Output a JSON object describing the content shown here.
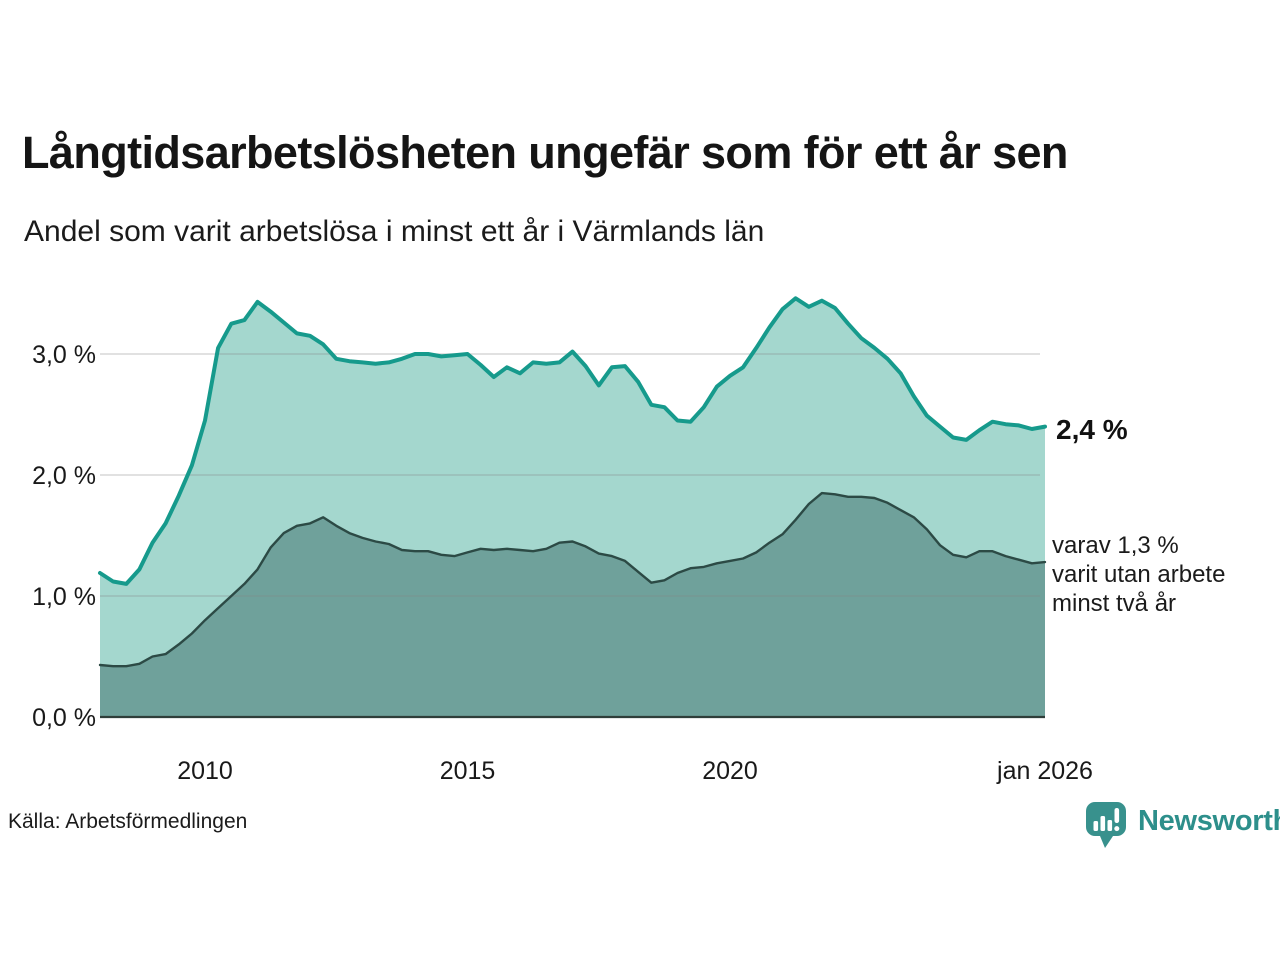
{
  "header": {
    "title": "Långtidsarbetslösheten ungefär som för ett år sen",
    "subtitle": "Andel som varit arbetslösa i minst ett år i Värmlands län"
  },
  "annotations": {
    "latest_total": "2,4 %",
    "secondary": "varav 1,3 %\nvarit utan arbete\nminst två år"
  },
  "footer": {
    "source": "Källa: Arbetsförmedlingen",
    "brand": "Newsworthy"
  },
  "colors": {
    "line_total": "#169a8c",
    "fill_total": "#a4d7ce",
    "line_two_years": "#2c4a45",
    "fill_two_years": "#6fa19b",
    "gridline": "rgba(130,130,130,0.32)",
    "baseline": "#2f3e3a",
    "text": "#191919",
    "brand_teal": "#2d8f8b"
  },
  "chart_data": {
    "type": "area",
    "title": "Långtidsarbetslösheten ungefär som för ett år sen",
    "subtitle": "Andel som varit arbetslösa i minst ett år i Värmlands län",
    "x_unit": "decimal_year",
    "xlim": [
      2008.0,
      2026.0
    ],
    "ylim": [
      0,
      3.57
    ],
    "grid": "horizontal",
    "legend_position": "annotations-right",
    "x": [
      2008.0,
      2008.25,
      2008.5,
      2008.75,
      2009.0,
      2009.25,
      2009.5,
      2009.75,
      2010.0,
      2010.25,
      2010.5,
      2010.75,
      2011.0,
      2011.25,
      2011.5,
      2011.75,
      2012.0,
      2012.25,
      2012.5,
      2012.75,
      2013.0,
      2013.25,
      2013.5,
      2013.75,
      2014.0,
      2014.25,
      2014.5,
      2014.75,
      2015.0,
      2015.25,
      2015.5,
      2015.75,
      2016.0,
      2016.25,
      2016.5,
      2016.75,
      2017.0,
      2017.25,
      2017.5,
      2017.75,
      2018.0,
      2018.25,
      2018.5,
      2018.75,
      2019.0,
      2019.25,
      2019.5,
      2019.75,
      2020.0,
      2020.25,
      2020.5,
      2020.75,
      2021.0,
      2021.25,
      2021.5,
      2021.75,
      2022.0,
      2022.25,
      2022.5,
      2022.75,
      2023.0,
      2023.25,
      2023.5,
      2023.75,
      2024.0,
      2024.25,
      2024.5,
      2024.75,
      2025.0,
      2025.25,
      2025.5,
      2025.75,
      2026.0
    ],
    "series": [
      {
        "name": "Andel arbetslösa minst ett år",
        "latest_label": "2,4 %",
        "values": [
          1.19,
          1.12,
          1.1,
          1.22,
          1.44,
          1.6,
          1.83,
          2.08,
          2.45,
          3.05,
          3.25,
          3.28,
          3.43,
          3.35,
          3.26,
          3.17,
          3.15,
          3.08,
          2.96,
          2.94,
          2.93,
          2.92,
          2.93,
          2.96,
          3.0,
          3.0,
          2.98,
          2.99,
          3.0,
          2.91,
          2.81,
          2.89,
          2.84,
          2.93,
          2.92,
          2.93,
          3.02,
          2.9,
          2.74,
          2.89,
          2.9,
          2.77,
          2.58,
          2.56,
          2.45,
          2.44,
          2.56,
          2.73,
          2.82,
          2.89,
          3.05,
          3.22,
          3.37,
          3.46,
          3.39,
          3.44,
          3.38,
          3.25,
          3.13,
          3.05,
          2.96,
          2.84,
          2.65,
          2.49,
          2.4,
          2.31,
          2.29,
          2.37,
          2.44,
          2.42,
          2.41,
          2.38,
          2.4
        ]
      },
      {
        "name": "Andel utan arbete minst två år",
        "latest_label": "1,3 %",
        "values": [
          0.43,
          0.42,
          0.42,
          0.44,
          0.5,
          0.52,
          0.6,
          0.69,
          0.8,
          0.9,
          1.0,
          1.1,
          1.22,
          1.4,
          1.52,
          1.58,
          1.6,
          1.65,
          1.58,
          1.52,
          1.48,
          1.45,
          1.43,
          1.38,
          1.37,
          1.37,
          1.34,
          1.33,
          1.36,
          1.39,
          1.38,
          1.39,
          1.38,
          1.37,
          1.39,
          1.44,
          1.45,
          1.41,
          1.35,
          1.33,
          1.29,
          1.2,
          1.11,
          1.13,
          1.19,
          1.23,
          1.24,
          1.27,
          1.29,
          1.31,
          1.36,
          1.44,
          1.51,
          1.63,
          1.76,
          1.85,
          1.84,
          1.82,
          1.82,
          1.81,
          1.77,
          1.71,
          1.65,
          1.55,
          1.42,
          1.34,
          1.32,
          1.37,
          1.37,
          1.33,
          1.3,
          1.27,
          1.28
        ]
      }
    ],
    "yticks": [
      {
        "value": 0.0,
        "label": "0,0 %"
      },
      {
        "value": 1.0,
        "label": "1,0 %"
      },
      {
        "value": 2.0,
        "label": "2,0 %"
      },
      {
        "value": 3.0,
        "label": "3,0 %"
      }
    ],
    "xticks": [
      {
        "value": 2010,
        "label": "2010"
      },
      {
        "value": 2015,
        "label": "2015"
      },
      {
        "value": 2020,
        "label": "2020"
      },
      {
        "value": 2026,
        "label": "jan 2026"
      }
    ]
  }
}
